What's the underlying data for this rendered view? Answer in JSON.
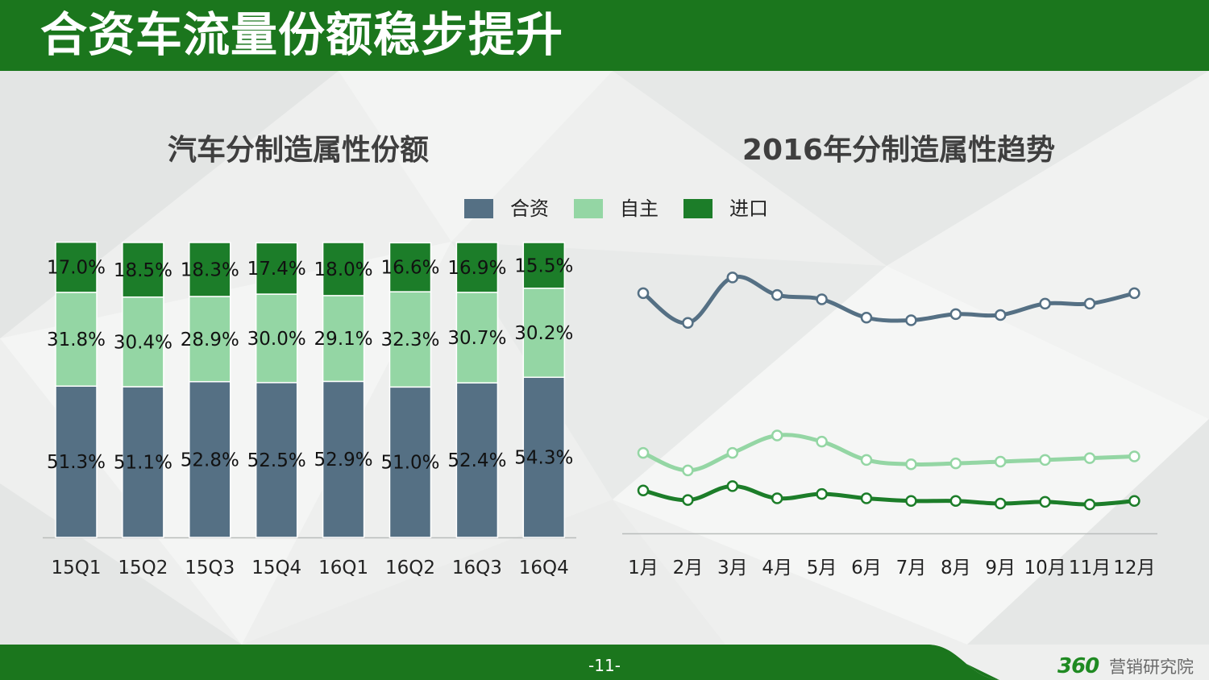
{
  "page": {
    "title": "合资车流量份额稳步提升",
    "page_number": "-11-",
    "brand_number": "360",
    "brand_text": "营销研究院"
  },
  "legend": [
    {
      "label": "合资",
      "color": "#557084"
    },
    {
      "label": "自主",
      "color": "#94d6a4"
    },
    {
      "label": "进口",
      "color": "#1c7d29"
    }
  ],
  "chart_data": [
    {
      "type": "bar",
      "stacked": true,
      "title": "汽车分制造属性份额",
      "categories": [
        "15Q1",
        "15Q2",
        "15Q3",
        "15Q4",
        "16Q1",
        "16Q2",
        "16Q3",
        "16Q4"
      ],
      "series": [
        {
          "name": "合资",
          "color": "#557084",
          "values": [
            51.3,
            51.1,
            52.8,
            52.5,
            52.9,
            51.0,
            52.4,
            54.3
          ]
        },
        {
          "name": "自主",
          "color": "#94d6a4",
          "values": [
            31.8,
            30.4,
            28.9,
            30.0,
            29.1,
            32.3,
            30.7,
            30.2
          ]
        },
        {
          "name": "进口",
          "color": "#1c7d29",
          "values": [
            17.0,
            18.5,
            18.3,
            17.4,
            18.0,
            16.6,
            16.9,
            15.5
          ]
        }
      ],
      "value_suffix": "%",
      "ylim": [
        0,
        100
      ],
      "grid": false
    },
    {
      "type": "line",
      "title": "2016年分制造属性趋势",
      "categories": [
        "1月",
        "2月",
        "3月",
        "4月",
        "5月",
        "6月",
        "7月",
        "8月",
        "9月",
        "10月",
        "11月",
        "12月"
      ],
      "series": [
        {
          "name": "合资",
          "color": "#557084",
          "values": [
            52.1,
            48.7,
            53.9,
            51.9,
            51.4,
            49.3,
            49.0,
            49.7,
            49.6,
            50.9,
            50.9,
            52.1
          ]
        },
        {
          "name": "自主",
          "color": "#94d6a4",
          "values": [
            33.8,
            31.8,
            33.8,
            35.8,
            35.1,
            33.0,
            32.5,
            32.6,
            32.8,
            33.0,
            33.2,
            33.4
          ]
        },
        {
          "name": "进口",
          "color": "#1c7d29",
          "values": [
            29.5,
            28.4,
            30.0,
            28.6,
            29.1,
            28.6,
            28.3,
            28.3,
            28.0,
            28.2,
            27.9,
            28.3
          ]
        }
      ],
      "ylim": [
        22,
        58
      ],
      "grid": false,
      "y_axis_visible": false
    }
  ]
}
